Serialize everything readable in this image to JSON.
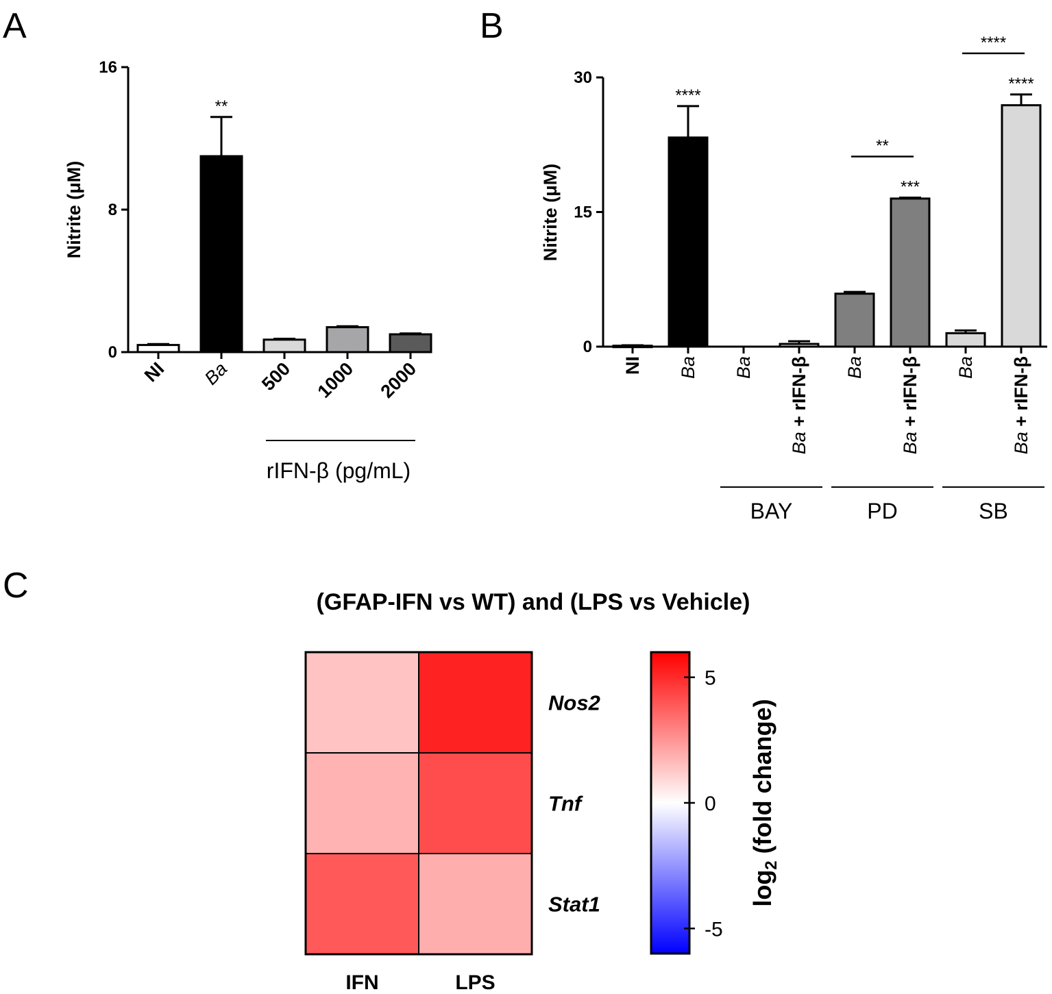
{
  "panel_labels": [
    "A",
    "B",
    "C"
  ],
  "colors": {
    "bar_outline": "#000000",
    "heat_low": "#0000ff",
    "heat_mid": "#ffffff",
    "heat_high": "#ff0000"
  },
  "chart_data": [
    {
      "id": "A",
      "type": "bar",
      "ylabel": "Nitrite (μM)",
      "ylim": [
        0,
        16
      ],
      "yticks": [
        "0",
        "8",
        "16"
      ],
      "categories": [
        "NI",
        "Ba",
        "500",
        "1000",
        "2000"
      ],
      "italic_categories": [
        "Ba"
      ],
      "values": [
        0.4,
        11.0,
        0.7,
        1.4,
        1.0
      ],
      "errors": [
        0.05,
        2.2,
        0.05,
        0.05,
        0.05
      ],
      "fills": [
        "#ffffff",
        "#000000",
        "#d9d9d9",
        "#a6a6a8",
        "#5a5a5a"
      ],
      "significance": [
        {
          "category": "Ba",
          "label": "**"
        }
      ],
      "group_label": "rIFN-β (pg/mL)"
    },
    {
      "id": "B",
      "type": "bar",
      "ylabel": "Nitrite (μM)",
      "ylim": [
        0,
        30
      ],
      "yticks": [
        "0",
        "15",
        "30"
      ],
      "categories": [
        {
          "lead": "NI",
          "rest": ""
        },
        {
          "lead": "Ba",
          "rest": ""
        },
        {
          "lead": "Ba",
          "rest": ""
        },
        {
          "lead": "Ba",
          "rest": " + rIFN-β"
        },
        {
          "lead": "Ba",
          "rest": ""
        },
        {
          "lead": "Ba",
          "rest": " + rIFN-β"
        },
        {
          "lead": "Ba",
          "rest": ""
        },
        {
          "lead": "Ba",
          "rest": " + rIFN-β"
        }
      ],
      "values": [
        0.1,
        23.3,
        0.0,
        0.3,
        5.9,
        16.5,
        1.5,
        26.9
      ],
      "errors": [
        0.05,
        3.5,
        0.0,
        0.3,
        0.2,
        0.1,
        0.3,
        1.2
      ],
      "fills": [
        "#ffffff",
        "#000000",
        "#ffffff",
        "#ffffff",
        "#7f7f7f",
        "#7f7f7f",
        "#d9d9d9",
        "#d9d9d9"
      ],
      "significance": [
        {
          "index": 1,
          "label": "****"
        },
        {
          "index": 5,
          "label": "***"
        },
        {
          "index": 7,
          "label": "****"
        }
      ],
      "brackets": [
        {
          "from": 4,
          "to": 5,
          "label": "**"
        },
        {
          "from": 6,
          "to": 7,
          "label": "****"
        }
      ],
      "groups": [
        {
          "label": "BAY",
          "from": 2,
          "to": 3
        },
        {
          "label": "PD",
          "from": 4,
          "to": 5
        },
        {
          "label": "SB",
          "from": 6,
          "to": 7
        }
      ]
    },
    {
      "id": "C",
      "type": "heatmap",
      "title": "(GFAP-IFN vs WT) and (LPS vs Vehicle)",
      "columns": [
        "IFN",
        "LPS"
      ],
      "rows": [
        "Nos2",
        "Tnf",
        "Stat1"
      ],
      "values": [
        [
          1.4,
          5.2
        ],
        [
          1.8,
          4.2
        ],
        [
          3.9,
          1.9
        ]
      ],
      "colorbar": {
        "label_main": "log",
        "label_sub": "2",
        "label_rest": " (fold change)",
        "vmin": -6,
        "vmax": 6,
        "ticks": [
          5,
          0,
          -5
        ],
        "tick_labels": [
          "5",
          "0",
          "-5"
        ]
      }
    }
  ]
}
